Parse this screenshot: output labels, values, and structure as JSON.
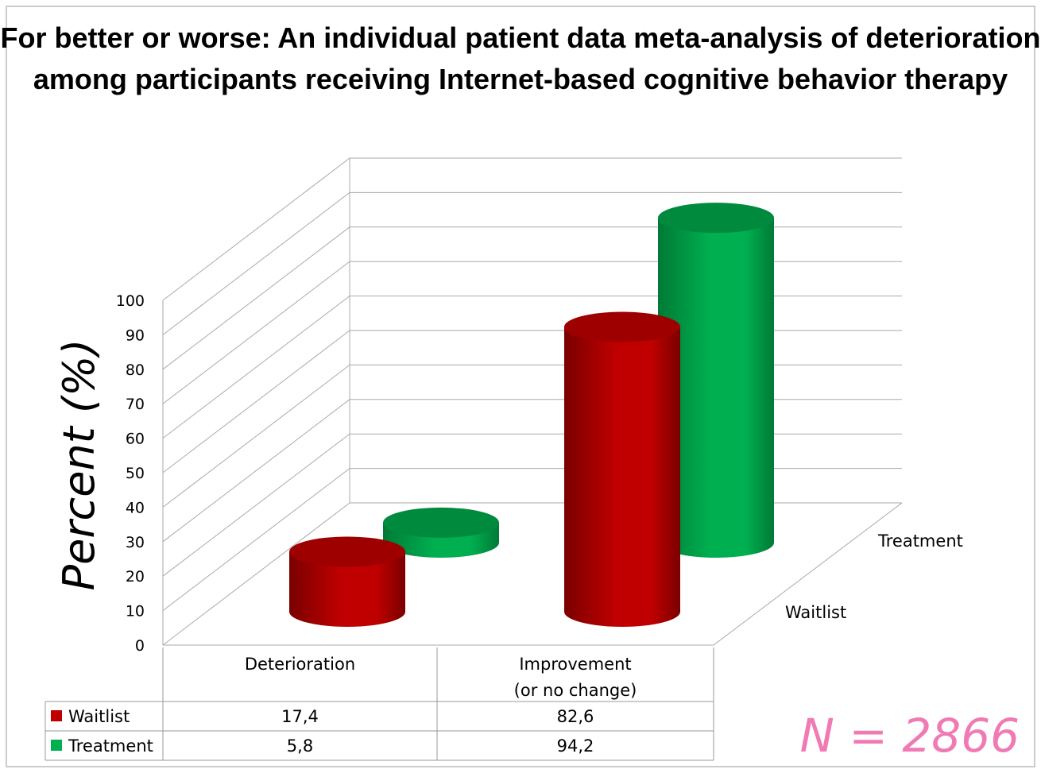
{
  "chart_data": {
    "type": "bar",
    "style": "3d-cylinder",
    "title": "For better or worse: An individual patient data meta-analysis of deterioration among participants receiving Internet-based cognitive behavior therapy",
    "ylabel": "Percent (%)",
    "xlabel": "",
    "ylim": [
      0,
      100
    ],
    "yticks": [
      0,
      10,
      20,
      30,
      40,
      50,
      60,
      70,
      80,
      90,
      100
    ],
    "categories": [
      "Deterioration",
      "Improvement\n(or no change)"
    ],
    "category_lines": [
      [
        "Deterioration"
      ],
      [
        "Improvement",
        "(or no change)"
      ]
    ],
    "series": [
      {
        "name": "Waitlist",
        "color": "#c00000",
        "values": [
          17.4,
          82.6
        ],
        "labels": [
          "17,4",
          "82,6"
        ]
      },
      {
        "name": "Treatment",
        "color": "#00b050",
        "values": [
          5.8,
          94.2
        ],
        "labels": [
          "5,8",
          "94,2"
        ]
      }
    ],
    "grid": true,
    "legend": "data-table-below",
    "annotation": "N = 2866",
    "annotation_color": "#f07ab4"
  }
}
